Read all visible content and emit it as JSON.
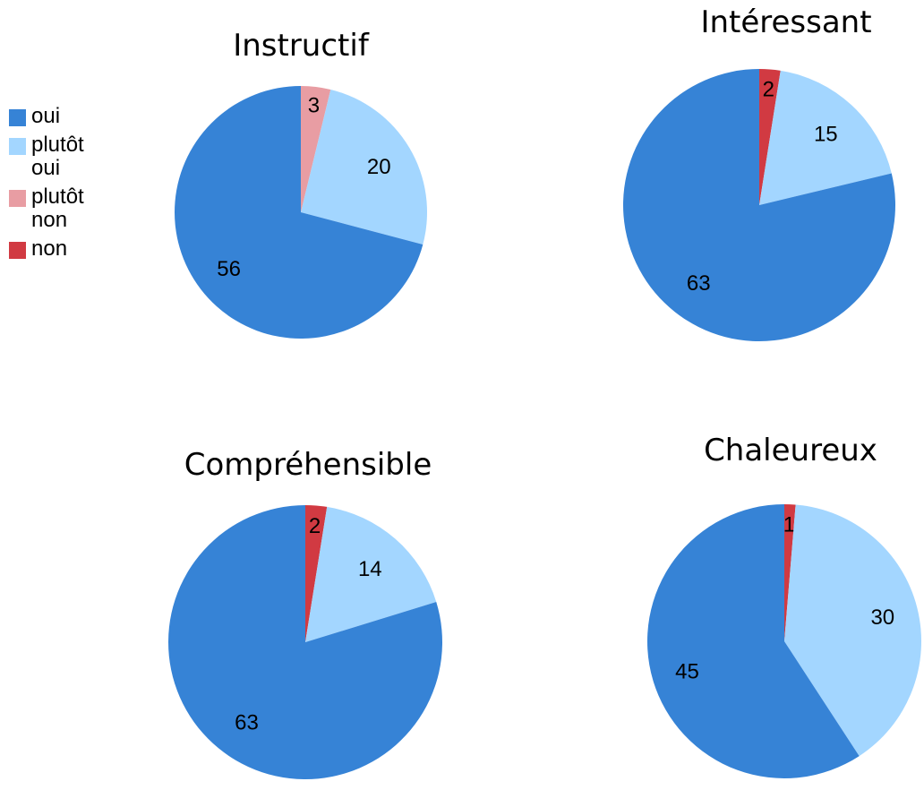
{
  "legend": {
    "placement": "left",
    "items": [
      {
        "label": "oui",
        "color": "#3683D6"
      },
      {
        "label": "plutôt oui",
        "color": "#A3D6FF"
      },
      {
        "label": "plutôt non",
        "color": "#E89DA3"
      },
      {
        "label": "non",
        "color": "#D13A42"
      }
    ]
  },
  "chart_data": [
    {
      "type": "pie",
      "title": "Instructif",
      "slices": [
        {
          "name": "plutôt non",
          "value": 3,
          "color": "#E89DA3"
        },
        {
          "name": "plutôt oui",
          "value": 20,
          "color": "#A3D6FF"
        },
        {
          "name": "oui",
          "value": 56,
          "color": "#3683D6"
        }
      ]
    },
    {
      "type": "pie",
      "title": "Intéressant",
      "slices": [
        {
          "name": "non",
          "value": 2,
          "color": "#D13A42"
        },
        {
          "name": "plutôt oui",
          "value": 15,
          "color": "#A3D6FF"
        },
        {
          "name": "oui",
          "value": 63,
          "color": "#3683D6"
        }
      ]
    },
    {
      "type": "pie",
      "title": "Compréhensible",
      "slices": [
        {
          "name": "non",
          "value": 2,
          "color": "#D13A42"
        },
        {
          "name": "plutôt oui",
          "value": 14,
          "color": "#A3D6FF"
        },
        {
          "name": "oui",
          "value": 63,
          "color": "#3683D6"
        }
      ]
    },
    {
      "type": "pie",
      "title": "Chaleureux",
      "slices": [
        {
          "name": "non",
          "value": 1,
          "color": "#D13A42"
        },
        {
          "name": "plutôt oui",
          "value": 30,
          "color": "#A3D6FF"
        },
        {
          "name": "oui",
          "value": 45,
          "color": "#3683D6"
        }
      ]
    }
  ]
}
